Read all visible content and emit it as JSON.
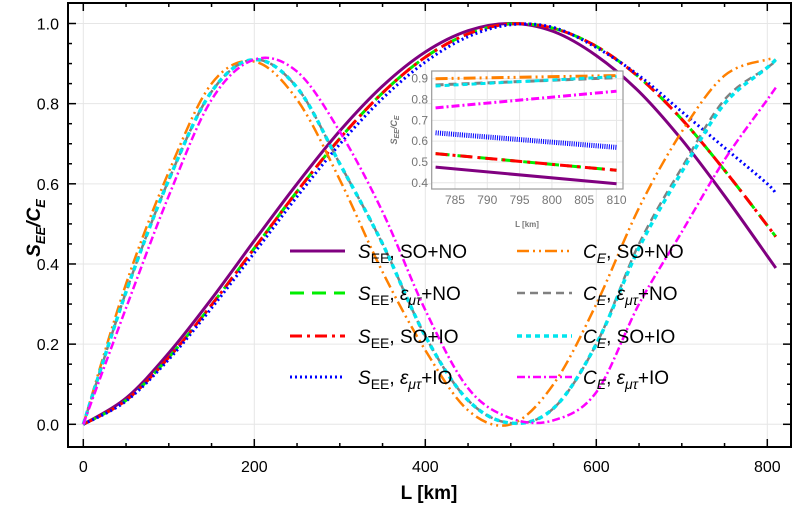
{
  "chart_data": {
    "type": "line",
    "xlabel": "L [km]",
    "ylabel": "S_EE/C_E",
    "ylabel_parts": {
      "a": "S",
      "a_sub": "EE",
      "slash": "/",
      "b": "C",
      "b_sub": "E"
    },
    "xlim": [
      -18,
      828
    ],
    "ylim": [
      -0.05,
      1.05
    ],
    "xticks": [
      0,
      200,
      400,
      600,
      800
    ],
    "yticks": [
      "0.0",
      "0.2",
      "0.4",
      "0.6",
      "0.8",
      "1.0"
    ],
    "grid": true,
    "legend_placement": "center-bottom",
    "x": [
      0,
      50,
      100,
      150,
      200,
      250,
      300,
      350,
      400,
      450,
      500,
      550,
      600,
      650,
      700,
      750,
      800,
      810
    ],
    "series": [
      {
        "name": "S_EE, SO+NO",
        "sym": "S",
        "sym_sub": "EE",
        "sep": ", ",
        "pre": "",
        "pre_sub": "",
        "post": "SO+NO",
        "color": "#800080",
        "dash": "",
        "width": 3,
        "values": [
          0,
          0.065,
          0.178,
          0.313,
          0.458,
          0.6,
          0.732,
          0.844,
          0.929,
          0.982,
          1.0,
          0.98,
          0.92,
          0.83,
          0.71,
          0.57,
          0.42,
          0.39
        ]
      },
      {
        "name": "S_EE, ε_μτ+NO",
        "sym": "S",
        "sym_sub": "EE",
        "sep": ", ",
        "pre": "ε",
        "pre_sub": "μτ",
        "post": "+NO",
        "color": "#00ee00",
        "dash": "14 8",
        "width": 3,
        "values": [
          0,
          0.06,
          0.167,
          0.298,
          0.439,
          0.581,
          0.713,
          0.827,
          0.916,
          0.974,
          0.999,
          0.988,
          0.943,
          0.866,
          0.761,
          0.634,
          0.496,
          0.468
        ]
      },
      {
        "name": "S_EE, SO+IO",
        "sym": "S",
        "sym_sub": "EE",
        "sep": ", ",
        "pre": "",
        "pre_sub": "",
        "post": "SO+IO",
        "color": "#ff0000",
        "dash": "12 5 3 5",
        "width": 3,
        "values": [
          0,
          0.06,
          0.167,
          0.298,
          0.439,
          0.581,
          0.713,
          0.827,
          0.916,
          0.974,
          0.999,
          0.988,
          0.943,
          0.866,
          0.761,
          0.634,
          0.496,
          0.468
        ]
      },
      {
        "name": "S_EE, ε_μτ+IO",
        "sym": "S",
        "sym_sub": "EE",
        "sep": ", ",
        "pre": "ε",
        "pre_sub": "μτ",
        "post": "+IO",
        "color": "#0000ff",
        "dash": "2 3",
        "width": 3,
        "values": [
          0,
          0.058,
          0.162,
          0.29,
          0.428,
          0.568,
          0.699,
          0.813,
          0.904,
          0.967,
          0.997,
          0.99,
          0.94,
          0.87,
          0.78,
          0.69,
          0.6,
          0.575
        ]
      },
      {
        "name": "C_E, SO+NO",
        "sym": "C",
        "sym_sub": "E",
        "sep": ", ",
        "pre": "",
        "pre_sub": "",
        "post": "SO+NO",
        "color": "#ff8000",
        "dash": "12 4 2 4 2 4",
        "width": 2.5,
        "values": [
          0,
          0.35,
          0.63,
          0.85,
          0.905,
          0.81,
          0.61,
          0.38,
          0.185,
          0.035,
          0.0,
          0.1,
          0.3,
          0.54,
          0.73,
          0.87,
          0.91,
          0.905
        ]
      },
      {
        "name": "C_E, ε_μτ+NO",
        "sym": "C",
        "sym_sub": "E",
        "sep": ", ",
        "pre": "ε",
        "pre_sub": "μτ",
        "post": "+NO",
        "color": "#808080",
        "dash": "8 5",
        "width": 2.5,
        "values": [
          0,
          0.33,
          0.61,
          0.83,
          0.91,
          0.84,
          0.65,
          0.45,
          0.22,
          0.06,
          0.003,
          0.04,
          0.2,
          0.45,
          0.64,
          0.81,
          0.89,
          0.905
        ]
      },
      {
        "name": "C_E, SO+IO",
        "sym": "C",
        "sym_sub": "E",
        "sep": ", ",
        "pre": "",
        "pre_sub": "",
        "post": "SO+IO",
        "color": "#00e5ee",
        "dash": "5 4",
        "width": 3.5,
        "values": [
          0,
          0.33,
          0.61,
          0.83,
          0.91,
          0.84,
          0.65,
          0.45,
          0.22,
          0.06,
          0.003,
          0.04,
          0.2,
          0.44,
          0.63,
          0.8,
          0.89,
          0.91
        ]
      },
      {
        "name": "C_E, ε_μτ+IO",
        "sym": "C",
        "sym_sub": "E",
        "sep": ", ",
        "pre": "ε",
        "pre_sub": "μτ",
        "post": "+IO",
        "color": "#ff00ff",
        "dash": "8 3 2 3",
        "width": 2.5,
        "values": [
          0,
          0.29,
          0.57,
          0.81,
          0.91,
          0.88,
          0.73,
          0.53,
          0.285,
          0.09,
          0.015,
          0.01,
          0.08,
          0.3,
          0.48,
          0.66,
          0.81,
          0.84
        ]
      }
    ],
    "inset": {
      "xlabel": "L [km]",
      "ylabel": "S_EE/C_E",
      "xlim": [
        781.4,
        811
      ],
      "ylim": [
        0.37,
        0.937
      ],
      "xticks": [
        785,
        790,
        795,
        800,
        805,
        810
      ],
      "yticks": [
        "0.4",
        "0.5",
        "0.6",
        "0.7",
        "0.8",
        "0.9"
      ],
      "x": [
        782,
        810
      ],
      "series_values": [
        [
          0.475,
          0.395
        ],
        [
          0.54,
          0.46
        ],
        [
          0.54,
          0.46
        ],
        [
          0.64,
          0.57
        ],
        [
          0.9,
          0.915
        ],
        [
          0.87,
          0.905
        ],
        [
          0.865,
          0.91
        ],
        [
          0.76,
          0.84
        ]
      ]
    }
  }
}
